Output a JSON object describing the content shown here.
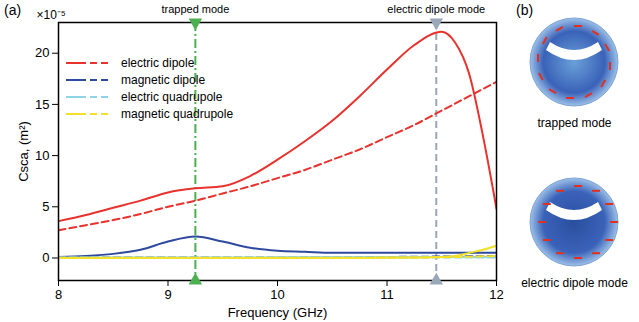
{
  "chart_data": {
    "type": "line",
    "panel_label": "(a)",
    "x_label": "Frequency (GHz)",
    "y_label": "Csca, (m²)",
    "y_multiplier": "×10⁻⁵",
    "x": [
      8,
      8.25,
      8.5,
      8.75,
      9,
      9.25,
      9.5,
      9.75,
      10,
      10.25,
      10.5,
      10.75,
      11,
      11.25,
      11.5,
      11.625,
      11.75,
      11.875,
      12
    ],
    "xlim": [
      8,
      12
    ],
    "xticks": [
      8,
      9,
      10,
      11,
      12
    ],
    "ylim": [
      -2.2,
      23
    ],
    "yticks": [
      0,
      5,
      10,
      15,
      20
    ],
    "legend": "top-left",
    "series": [
      {
        "name": "electric dipole",
        "color": "#e8322e",
        "line_style": "solid",
        "values": [
          3.6,
          4.2,
          4.9,
          5.6,
          6.4,
          6.8,
          7.0,
          8.0,
          9.6,
          11.4,
          13.4,
          15.8,
          18.4,
          20.8,
          22.1,
          21.0,
          18.0,
          12.0,
          4.8
        ]
      },
      {
        "name": "electric dipole",
        "color": "#e8322e",
        "line_style": "dashed",
        "values": [
          2.7,
          3.2,
          3.7,
          4.3,
          5.0,
          5.6,
          6.3,
          7.0,
          7.8,
          8.6,
          9.6,
          10.6,
          11.8,
          13.0,
          14.4,
          15.1,
          15.8,
          16.5,
          17.2
        ]
      },
      {
        "name": "magnetic dipole",
        "color": "#2e4a9e",
        "line_style": "solid",
        "values": [
          0.1,
          0.2,
          0.4,
          0.8,
          1.6,
          2.1,
          1.6,
          1.0,
          0.7,
          0.6,
          0.5,
          0.5,
          0.5,
          0.5,
          0.5,
          0.5,
          0.5,
          0.5,
          0.5
        ]
      },
      {
        "name": "magnetic dipole",
        "color": "#2e4a9e",
        "line_style": "dashed",
        "values": [
          0.05,
          0.05,
          0.05,
          0.05,
          0.05,
          0.05,
          0.05,
          0.05,
          0.05,
          0.06,
          0.07,
          0.08,
          0.1,
          0.12,
          0.14,
          0.15,
          0.17,
          0.18,
          0.2
        ]
      },
      {
        "name": "electric quadrupole",
        "color": "#8fd3e8",
        "line_style": "solid",
        "values": [
          0.05,
          0.05,
          0.05,
          0.05,
          0.05,
          0.05,
          0.05,
          0.05,
          0.06,
          0.06,
          0.07,
          0.07,
          0.08,
          0.08,
          0.09,
          0.09,
          0.1,
          0.1,
          0.1
        ]
      },
      {
        "name": "electric quadrupole",
        "color": "#8fd3e8",
        "line_style": "dashed",
        "values": [
          0.03,
          0.03,
          0.03,
          0.03,
          0.03,
          0.03,
          0.04,
          0.04,
          0.04,
          0.04,
          0.05,
          0.05,
          0.05,
          0.05,
          0.05,
          0.05,
          0.05,
          0.05,
          0.05
        ]
      },
      {
        "name": "magnetic quadrupole",
        "color": "#f2e02a",
        "line_style": "solid",
        "values": [
          0,
          0,
          0,
          0,
          0,
          0,
          0,
          0,
          0,
          0,
          0,
          0,
          0.02,
          0.05,
          0.1,
          0.2,
          0.5,
          0.8,
          1.2
        ]
      },
      {
        "name": "magnetic quadrupole",
        "color": "#f2e02a",
        "line_style": "dashed",
        "values": [
          0.02,
          0.02,
          0.02,
          0.02,
          0.02,
          0.02,
          0.02,
          0.02,
          0.02,
          0.02,
          0.03,
          0.03,
          0.04,
          0.05,
          0.07,
          0.09,
          0.12,
          0.16,
          0.2
        ]
      }
    ],
    "annotations": [
      {
        "text": "trapped mode",
        "x": 9.25,
        "color": "#4caf50",
        "line_style": "dashdot"
      },
      {
        "text": "electric dipole mode",
        "x": 11.45,
        "color": "#9aa7b8",
        "line_style": "dashed"
      }
    ]
  },
  "panel_b": {
    "label": "(b)",
    "images": [
      {
        "caption": "trapped mode"
      },
      {
        "caption": "electric dipole mode"
      }
    ]
  }
}
